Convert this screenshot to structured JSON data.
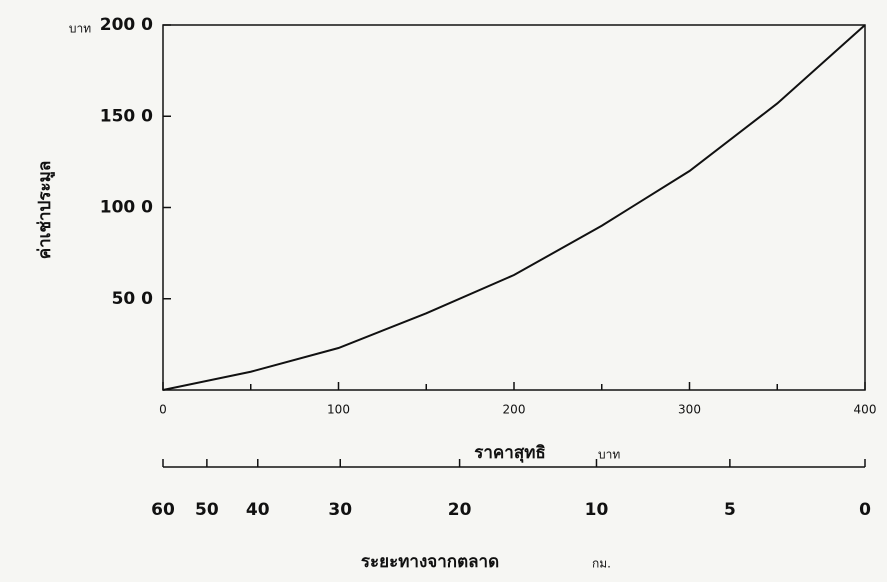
{
  "chart_data": {
    "type": "line",
    "y_label": "ค่าเช่าประมูล",
    "y_unit": "บาท",
    "x_label": "ราคาสุทธิ",
    "x_unit": "บาท",
    "x": [
      0,
      50,
      100,
      150,
      200,
      250,
      300,
      350,
      400
    ],
    "series": [
      {
        "color": "#111111",
        "values": [
          0,
          10,
          23,
          42,
          63,
          90,
          120,
          157,
          200
        ]
      }
    ],
    "xlim": [
      0,
      400
    ],
    "xticks": [
      0,
      100,
      200,
      300,
      400
    ],
    "x_minor_ticks": [
      50,
      150,
      250,
      350
    ],
    "ylim": [
      0,
      200
    ],
    "yticks": [
      {
        "value": 50,
        "label": "50 0"
      },
      {
        "value": 100,
        "label": "100 0"
      },
      {
        "value": 150,
        "label": "150 0"
      },
      {
        "value": 200,
        "label": "200 0"
      }
    ],
    "distance_axis": {
      "label": "ระยะทางจากตลาด",
      "unit": "กม.",
      "ticks": [
        60,
        50,
        40,
        30,
        20,
        10,
        5,
        0
      ],
      "price_at": [
        0,
        25,
        54,
        101,
        169,
        247,
        323,
        400
      ]
    }
  }
}
